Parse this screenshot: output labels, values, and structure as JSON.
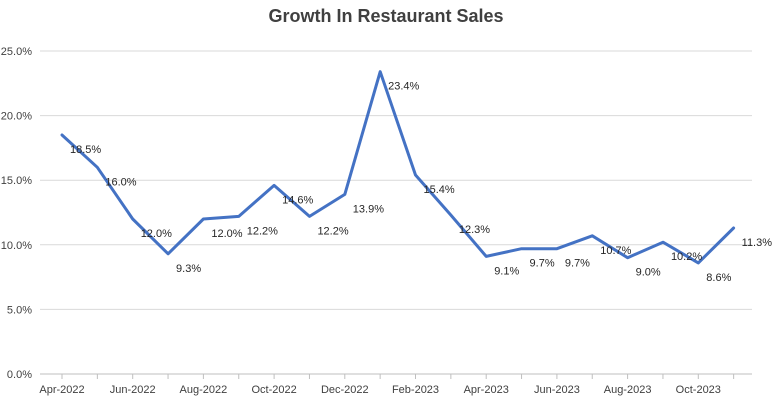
{
  "chart_data": {
    "type": "line",
    "title": "Growth In Restaurant Sales",
    "xlabel": "",
    "ylabel": "",
    "ylim": [
      0,
      25
    ],
    "y_ticks": [
      "0.0%",
      "5.0%",
      "10.0%",
      "15.0%",
      "20.0%",
      "25.0%"
    ],
    "grid": true,
    "line_color": "#4472C4",
    "x": [
      "Apr-2022",
      "May-2022",
      "Jun-2022",
      "Jul-2022",
      "Aug-2022",
      "Sep-2022",
      "Oct-2022",
      "Nov-2022",
      "Dec-2022",
      "Jan-2023",
      "Feb-2023",
      "Mar-2023",
      "Apr-2023",
      "May-2023",
      "Jun-2023",
      "Jul-2023",
      "Aug-2023",
      "Sep-2023",
      "Oct-2023",
      "Nov-2023"
    ],
    "x_tick_labels": [
      "Apr-2022",
      "Jun-2022",
      "Aug-2022",
      "Oct-2022",
      "Dec-2022",
      "Feb-2023",
      "Apr-2023",
      "Jun-2023",
      "Aug-2023",
      "Oct-2023"
    ],
    "values": [
      18.5,
      16.0,
      12.0,
      9.3,
      12.0,
      12.2,
      14.6,
      12.2,
      13.9,
      23.4,
      15.4,
      12.3,
      9.1,
      9.7,
      9.7,
      10.7,
      9.0,
      10.2,
      8.6,
      11.3
    ],
    "data_labels": [
      "18.5%",
      "16.0%",
      "12.0%",
      "9.3%",
      "12.0%",
      "12.2%",
      "14.6%",
      "12.2%",
      "13.9%",
      "23.4%",
      "15.4%",
      "12.3%",
      "9.1%",
      "9.7%",
      "9.7%",
      "10.7%",
      "9.0%",
      "10.2%",
      "8.6%",
      "11.3%"
    ]
  }
}
